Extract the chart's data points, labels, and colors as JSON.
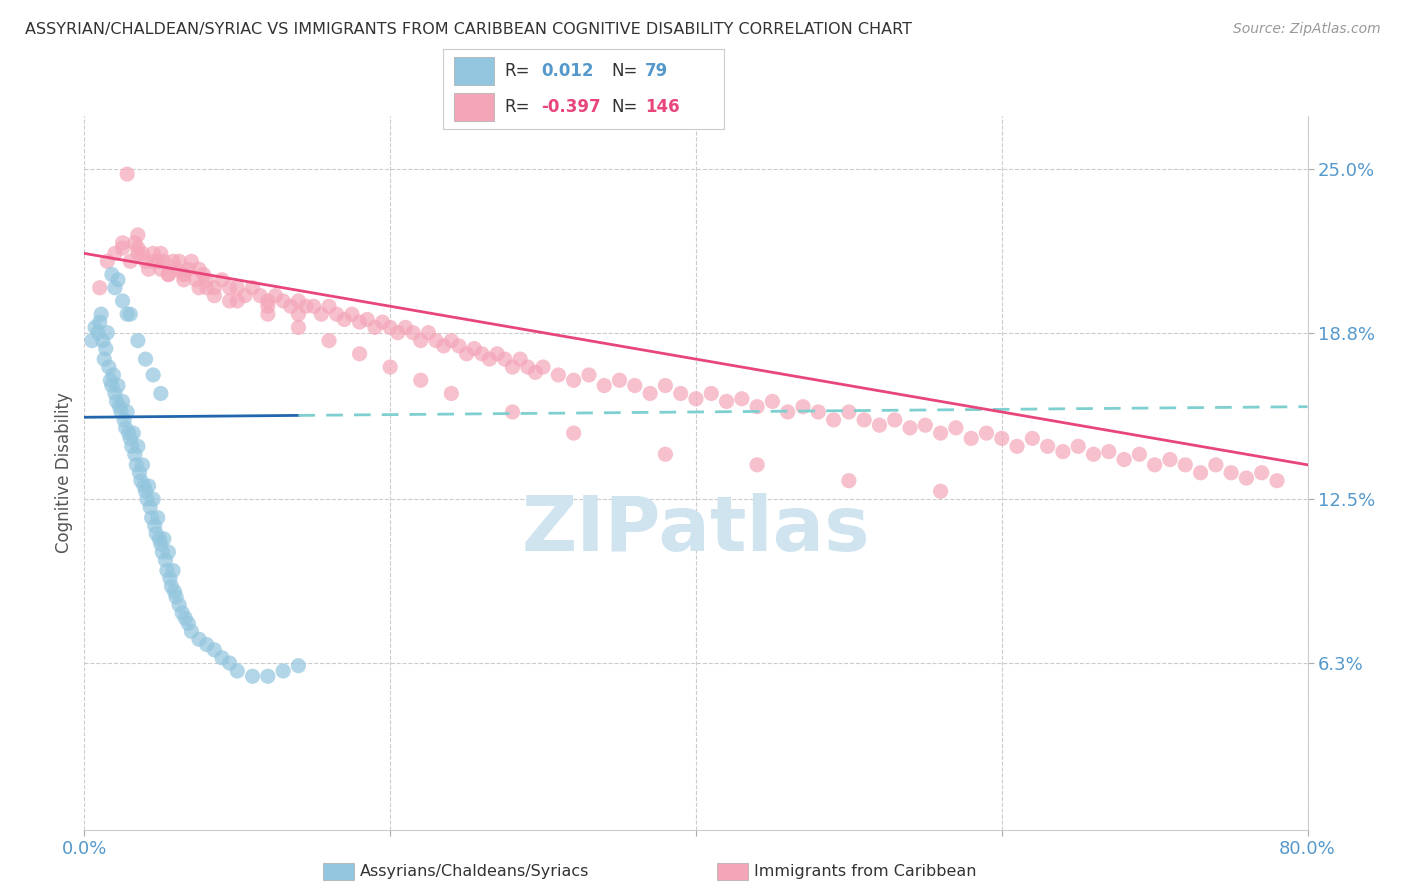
{
  "title": "ASSYRIAN/CHALDEAN/SYRIAC VS IMMIGRANTS FROM CARIBBEAN COGNITIVE DISABILITY CORRELATION CHART",
  "source": "Source: ZipAtlas.com",
  "ylabel": "Cognitive Disability",
  "ytick_labels": [
    "6.3%",
    "12.5%",
    "18.8%",
    "25.0%"
  ],
  "ytick_values": [
    0.063,
    0.125,
    0.188,
    0.25
  ],
  "xlim": [
    0.0,
    0.8
  ],
  "ylim": [
    0.0,
    0.27
  ],
  "legend_blue_r": "0.012",
  "legend_blue_n": "79",
  "legend_pink_r": "-0.397",
  "legend_pink_n": "146",
  "blue_color": "#92c5de",
  "pink_color": "#f4a6b8",
  "trendline_blue_solid_color": "#2166ac",
  "trendline_blue_dashed_color": "#7ecfcf",
  "trendline_pink_color": "#e8457a",
  "watermark_color": "#d0e4f0",
  "background_color": "#ffffff",
  "grid_color": "#cccccc",
  "axis_label_color": "#5599cc",
  "blue_scatter_x": [
    0.005,
    0.007,
    0.009,
    0.01,
    0.011,
    0.012,
    0.013,
    0.014,
    0.015,
    0.016,
    0.017,
    0.018,
    0.019,
    0.02,
    0.021,
    0.022,
    0.023,
    0.024,
    0.025,
    0.026,
    0.027,
    0.028,
    0.029,
    0.03,
    0.031,
    0.032,
    0.033,
    0.034,
    0.035,
    0.036,
    0.037,
    0.038,
    0.039,
    0.04,
    0.041,
    0.042,
    0.043,
    0.044,
    0.045,
    0.046,
    0.047,
    0.048,
    0.049,
    0.05,
    0.051,
    0.052,
    0.053,
    0.054,
    0.055,
    0.056,
    0.057,
    0.058,
    0.059,
    0.06,
    0.062,
    0.064,
    0.066,
    0.068,
    0.07,
    0.075,
    0.08,
    0.085,
    0.09,
    0.095,
    0.1,
    0.11,
    0.12,
    0.13,
    0.14,
    0.02,
    0.025,
    0.03,
    0.035,
    0.04,
    0.045,
    0.05,
    0.018,
    0.022,
    0.028
  ],
  "blue_scatter_y": [
    0.185,
    0.19,
    0.188,
    0.192,
    0.195,
    0.185,
    0.178,
    0.182,
    0.188,
    0.175,
    0.17,
    0.168,
    0.172,
    0.165,
    0.162,
    0.168,
    0.16,
    0.158,
    0.162,
    0.155,
    0.152,
    0.158,
    0.15,
    0.148,
    0.145,
    0.15,
    0.142,
    0.138,
    0.145,
    0.135,
    0.132,
    0.138,
    0.13,
    0.128,
    0.125,
    0.13,
    0.122,
    0.118,
    0.125,
    0.115,
    0.112,
    0.118,
    0.11,
    0.108,
    0.105,
    0.11,
    0.102,
    0.098,
    0.105,
    0.095,
    0.092,
    0.098,
    0.09,
    0.088,
    0.085,
    0.082,
    0.08,
    0.078,
    0.075,
    0.072,
    0.07,
    0.068,
    0.065,
    0.063,
    0.06,
    0.058,
    0.058,
    0.06,
    0.062,
    0.205,
    0.2,
    0.195,
    0.185,
    0.178,
    0.172,
    0.165,
    0.21,
    0.208,
    0.195
  ],
  "pink_scatter_x": [
    0.01,
    0.015,
    0.02,
    0.025,
    0.028,
    0.03,
    0.033,
    0.035,
    0.038,
    0.04,
    0.042,
    0.045,
    0.048,
    0.05,
    0.052,
    0.055,
    0.058,
    0.06,
    0.062,
    0.065,
    0.068,
    0.07,
    0.073,
    0.075,
    0.078,
    0.08,
    0.085,
    0.09,
    0.095,
    0.1,
    0.105,
    0.11,
    0.115,
    0.12,
    0.125,
    0.13,
    0.135,
    0.14,
    0.145,
    0.15,
    0.155,
    0.16,
    0.165,
    0.17,
    0.175,
    0.18,
    0.185,
    0.19,
    0.195,
    0.2,
    0.205,
    0.21,
    0.215,
    0.22,
    0.225,
    0.23,
    0.235,
    0.24,
    0.245,
    0.25,
    0.255,
    0.26,
    0.265,
    0.27,
    0.275,
    0.28,
    0.285,
    0.29,
    0.295,
    0.3,
    0.31,
    0.32,
    0.33,
    0.34,
    0.35,
    0.36,
    0.37,
    0.38,
    0.39,
    0.4,
    0.41,
    0.42,
    0.43,
    0.44,
    0.45,
    0.46,
    0.47,
    0.48,
    0.49,
    0.5,
    0.51,
    0.52,
    0.53,
    0.54,
    0.55,
    0.56,
    0.57,
    0.58,
    0.59,
    0.6,
    0.61,
    0.62,
    0.63,
    0.64,
    0.65,
    0.66,
    0.67,
    0.68,
    0.69,
    0.7,
    0.71,
    0.72,
    0.73,
    0.74,
    0.75,
    0.76,
    0.77,
    0.78,
    0.025,
    0.035,
    0.045,
    0.055,
    0.065,
    0.075,
    0.085,
    0.095,
    0.12,
    0.14,
    0.035,
    0.05,
    0.065,
    0.08,
    0.1,
    0.12,
    0.14,
    0.16,
    0.18,
    0.2,
    0.22,
    0.24,
    0.28,
    0.32,
    0.38,
    0.44,
    0.5,
    0.56
  ],
  "pink_scatter_y": [
    0.205,
    0.215,
    0.218,
    0.222,
    0.248,
    0.215,
    0.222,
    0.22,
    0.218,
    0.215,
    0.212,
    0.218,
    0.215,
    0.212,
    0.215,
    0.21,
    0.215,
    0.212,
    0.215,
    0.21,
    0.212,
    0.215,
    0.208,
    0.212,
    0.21,
    0.208,
    0.205,
    0.208,
    0.205,
    0.205,
    0.202,
    0.205,
    0.202,
    0.2,
    0.202,
    0.2,
    0.198,
    0.2,
    0.198,
    0.198,
    0.195,
    0.198,
    0.195,
    0.193,
    0.195,
    0.192,
    0.193,
    0.19,
    0.192,
    0.19,
    0.188,
    0.19,
    0.188,
    0.185,
    0.188,
    0.185,
    0.183,
    0.185,
    0.183,
    0.18,
    0.182,
    0.18,
    0.178,
    0.18,
    0.178,
    0.175,
    0.178,
    0.175,
    0.173,
    0.175,
    0.172,
    0.17,
    0.172,
    0.168,
    0.17,
    0.168,
    0.165,
    0.168,
    0.165,
    0.163,
    0.165,
    0.162,
    0.163,
    0.16,
    0.162,
    0.158,
    0.16,
    0.158,
    0.155,
    0.158,
    0.155,
    0.153,
    0.155,
    0.152,
    0.153,
    0.15,
    0.152,
    0.148,
    0.15,
    0.148,
    0.145,
    0.148,
    0.145,
    0.143,
    0.145,
    0.142,
    0.143,
    0.14,
    0.142,
    0.138,
    0.14,
    0.138,
    0.135,
    0.138,
    0.135,
    0.133,
    0.135,
    0.132,
    0.22,
    0.218,
    0.215,
    0.21,
    0.208,
    0.205,
    0.202,
    0.2,
    0.198,
    0.195,
    0.225,
    0.218,
    0.21,
    0.205,
    0.2,
    0.195,
    0.19,
    0.185,
    0.18,
    0.175,
    0.17,
    0.165,
    0.158,
    0.15,
    0.142,
    0.138,
    0.132,
    0.128
  ],
  "blue_trendline_x0": 0.0,
  "blue_trendline_x_solid_end": 0.14,
  "blue_trendline_x1": 0.8,
  "blue_trendline_y0": 0.156,
  "blue_trendline_y1": 0.16,
  "pink_trendline_x0": 0.0,
  "pink_trendline_x1": 0.8,
  "pink_trendline_y0": 0.218,
  "pink_trendline_y1": 0.138
}
